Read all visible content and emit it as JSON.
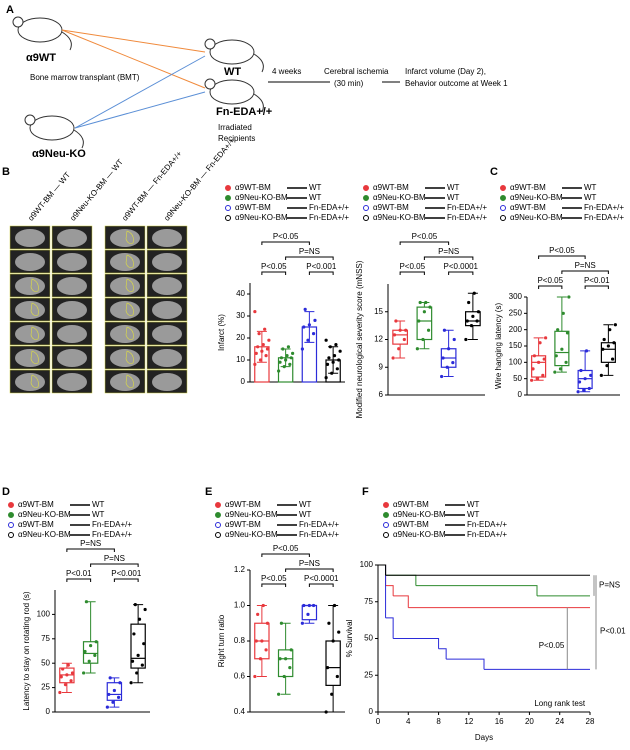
{
  "schematic": {
    "label": "A",
    "donor_wt": "α9WT",
    "bmt": "Bone marrow transplant (BMT)",
    "donor_ko": "α9Neu-KO",
    "recipient_wt": "WT",
    "recipient_fn": "Fn-EDA+/+",
    "irradiated": "Irradiated",
    "recipients": "Recipients",
    "weeks": "4 weeks",
    "ischemia": "Cerebral ischemia",
    "duration": "(30 min)",
    "outcome1": "Infarct volume (Day 2),",
    "outcome2": "Behavior outcome at Week 1"
  },
  "panels": [
    "B",
    "C",
    "D",
    "E",
    "F"
  ],
  "mri": {
    "columns": [
      "α9WT-BM — WT",
      "α9Neu-KO-BM — WT",
      "α9WT-BM — Fn-EDA+/+",
      "α9Neu-KO-BM — Fn-EDA+/+"
    ]
  },
  "chart_data": [
    {
      "type": "bar",
      "y_label": "Infarct (%)",
      "ylim": [
        0,
        45
      ],
      "yticks": [
        0,
        10,
        20,
        30,
        40
      ],
      "annotations": [
        "P<0.05",
        "P=NS",
        "P<0.05",
        "P<0.001"
      ],
      "series": [
        {
          "name": "α9WT-BM",
          "recipient": "WT",
          "color": "#e8383d",
          "marker": "filled",
          "value": 16,
          "error": 7,
          "points": [
            8,
            10,
            12,
            13,
            14,
            15,
            16,
            17,
            19,
            22,
            24,
            32
          ]
        },
        {
          "name": "α9Neu-KO-BM",
          "recipient": "WT",
          "color": "#2e8b2e",
          "marker": "filled",
          "value": 11,
          "error": 4,
          "points": [
            5,
            7,
            8,
            9,
            10,
            11,
            11,
            12,
            13,
            15,
            16
          ]
        },
        {
          "name": "α9WT-BM",
          "recipient": "Fn-EDA+/+",
          "color": "#2b2bd9",
          "marker": "open",
          "value": 25,
          "error": 7,
          "points": [
            15,
            19,
            22,
            25,
            26,
            28,
            33
          ]
        },
        {
          "name": "α9Neu-KO-BM",
          "recipient": "Fn-EDA+/+",
          "color": "#000000",
          "marker": "open",
          "value": 10,
          "error": 6,
          "points": [
            2,
            4,
            6,
            8,
            9,
            10,
            11,
            12,
            14,
            16,
            17,
            19
          ]
        }
      ]
    },
    {
      "type": "box",
      "y_label": "Modified neurological severity score (mNSS)",
      "ylim": [
        6,
        18
      ],
      "yticks": [
        6,
        9,
        12,
        15
      ],
      "annotations": [
        "P<0.05",
        "P=NS",
        "P<0.05",
        "P<0.0001"
      ],
      "series": [
        {
          "name": "α9WT-BM",
          "recipient": "WT",
          "color": "#e8383d",
          "marker": "filled",
          "box": {
            "min": 10,
            "q1": 11.5,
            "median": 12.5,
            "q3": 13,
            "max": 14
          },
          "points": [
            10,
            11,
            12,
            12.5,
            13,
            13,
            14
          ]
        },
        {
          "name": "α9Neu-KO-BM",
          "recipient": "WT",
          "color": "#2e8b2e",
          "marker": "filled",
          "box": {
            "min": 11,
            "q1": 12,
            "median": 14,
            "q3": 15.5,
            "max": 16
          },
          "points": [
            11,
            12,
            13,
            14,
            15,
            15.5,
            16,
            16
          ]
        },
        {
          "name": "α9WT-BM",
          "recipient": "Fn-EDA+/+",
          "color": "#2b2bd9",
          "marker": "open",
          "box": {
            "min": 8,
            "q1": 9,
            "median": 10,
            "q3": 11,
            "max": 13
          },
          "points": [
            8,
            9,
            9.5,
            10,
            11,
            12,
            13
          ]
        },
        {
          "name": "α9Neu-KO-BM",
          "recipient": "Fn-EDA+/+",
          "color": "#000000",
          "marker": "open",
          "box": {
            "min": 12,
            "q1": 13.5,
            "median": 14,
            "q3": 15,
            "max": 17
          },
          "points": [
            12,
            13.5,
            14,
            14,
            14.5,
            15,
            16,
            17
          ]
        }
      ]
    },
    {
      "type": "box",
      "y_label": "Wire hanging latency (s)",
      "ylim": [
        0,
        300
      ],
      "yticks": [
        0,
        50,
        100,
        150,
        200,
        250,
        300
      ],
      "annotations": [
        "P<0.05",
        "P=NS",
        "P<0.05",
        "P<0.01"
      ],
      "series": [
        {
          "name": "α9WT-BM",
          "recipient": "WT",
          "color": "#e8383d",
          "marker": "filled",
          "box": {
            "min": 45,
            "q1": 55,
            "median": 100,
            "q3": 120,
            "max": 175
          },
          "points": [
            45,
            50,
            60,
            80,
            100,
            110,
            120,
            160,
            175
          ]
        },
        {
          "name": "α9Neu-KO-BM",
          "recipient": "WT",
          "color": "#2e8b2e",
          "marker": "filled",
          "box": {
            "min": 70,
            "q1": 90,
            "median": 130,
            "q3": 195,
            "max": 300
          },
          "points": [
            70,
            80,
            100,
            120,
            140,
            190,
            200,
            250,
            300
          ]
        },
        {
          "name": "α9WT-BM",
          "recipient": "Fn-EDA+/+",
          "color": "#2b2bd9",
          "marker": "open",
          "box": {
            "min": 10,
            "q1": 20,
            "median": 50,
            "q3": 75,
            "max": 135
          },
          "points": [
            10,
            15,
            20,
            40,
            50,
            60,
            75,
            135
          ]
        },
        {
          "name": "α9Neu-KO-BM",
          "recipient": "Fn-EDA+/+",
          "color": "#000000",
          "marker": "open",
          "box": {
            "min": 60,
            "q1": 100,
            "median": 140,
            "q3": 160,
            "max": 215
          },
          "points": [
            60,
            90,
            110,
            140,
            150,
            160,
            170,
            200,
            215
          ]
        }
      ]
    },
    {
      "type": "box",
      "y_label": "Latency to stay on rotating rod (s)",
      "ylim": [
        0,
        125
      ],
      "yticks": [
        0,
        25,
        50,
        75,
        100
      ],
      "annotations": [
        "P=NS",
        "P=NS",
        "P<0.01",
        "P<0.001"
      ],
      "series": [
        {
          "name": "α9WT-BM",
          "recipient": "WT",
          "color": "#e8383d",
          "marker": "filled",
          "box": {
            "min": 20,
            "q1": 30,
            "median": 38,
            "q3": 45,
            "max": 50
          },
          "points": [
            20,
            28,
            32,
            36,
            38,
            40,
            44,
            48
          ]
        },
        {
          "name": "α9Neu-KO-BM",
          "recipient": "WT",
          "color": "#2e8b2e",
          "marker": "filled",
          "box": {
            "min": 40,
            "q1": 50,
            "median": 60,
            "q3": 72,
            "max": 113
          },
          "points": [
            40,
            52,
            58,
            62,
            68,
            72,
            113
          ]
        },
        {
          "name": "α9WT-BM",
          "recipient": "Fn-EDA+/+",
          "color": "#2b2bd9",
          "marker": "open",
          "box": {
            "min": 5,
            "q1": 12,
            "median": 18,
            "q3": 30,
            "max": 35
          },
          "points": [
            5,
            10,
            15,
            18,
            22,
            30,
            35
          ]
        },
        {
          "name": "α9Neu-KO-BM",
          "recipient": "Fn-EDA+/+",
          "color": "#000000",
          "marker": "open",
          "box": {
            "min": 30,
            "q1": 45,
            "median": 55,
            "q3": 90,
            "max": 110
          },
          "points": [
            30,
            40,
            48,
            52,
            58,
            70,
            80,
            95,
            105,
            110
          ]
        }
      ]
    },
    {
      "type": "box",
      "y_label": "Right turn ratio",
      "ylim": [
        0.4,
        1.2
      ],
      "yticks": [
        0.4,
        0.6,
        0.8,
        {
          "value": 1,
          "label": "1.0"
        },
        1.2
      ],
      "annotations": [
        "P<0.05",
        "P=NS",
        "P<0.05",
        "P<0.0001"
      ],
      "series": [
        {
          "name": "α9WT-BM",
          "recipient": "WT",
          "color": "#e8383d",
          "marker": "filled",
          "box": {
            "min": 0.6,
            "q1": 0.7,
            "median": 0.8,
            "q3": 0.9,
            "max": 1
          },
          "points": [
            0.6,
            0.7,
            0.75,
            0.8,
            0.8,
            0.9,
            0.95,
            1
          ]
        },
        {
          "name": "α9Neu-KO-BM",
          "recipient": "WT",
          "color": "#2e8b2e",
          "marker": "filled",
          "box": {
            "min": 0.5,
            "q1": 0.6,
            "median": 0.7,
            "q3": 0.75,
            "max": 0.9
          },
          "points": [
            0.5,
            0.6,
            0.65,
            0.7,
            0.7,
            0.75,
            0.9
          ]
        },
        {
          "name": "α9WT-BM",
          "recipient": "Fn-EDA+/+",
          "color": "#2b2bd9",
          "marker": "open",
          "box": {
            "min": 0.9,
            "q1": 0.92,
            "median": 1,
            "q3": 1,
            "max": 1
          },
          "points": [
            0.9,
            0.95,
            1,
            1,
            1
          ]
        },
        {
          "name": "α9Neu-KO-BM",
          "recipient": "Fn-EDA+/+",
          "color": "#000000",
          "marker": "open",
          "box": {
            "min": 0.4,
            "q1": 0.55,
            "median": 0.65,
            "q3": 0.8,
            "max": 1
          },
          "points": [
            0.4,
            0.5,
            0.6,
            0.65,
            0.8,
            0.85,
            0.9,
            1
          ]
        }
      ]
    },
    {
      "type": "survival",
      "x_label": "Days",
      "y_label": "% Survival",
      "xlim": [
        0,
        28
      ],
      "xticks": [
        0,
        4,
        8,
        12,
        16,
        20,
        24,
        28
      ],
      "ylim": [
        0,
        100
      ],
      "yticks": [
        0,
        25,
        50,
        75,
        100
      ],
      "annotations": [
        "P=NS",
        "P<0.01",
        "P<0.05",
        "Long rank test"
      ],
      "series": [
        {
          "name": "α9WT-BM",
          "recipient": "WT",
          "color": "#e8383d",
          "marker": "filled",
          "x": [
            0,
            1,
            2,
            4,
            28
          ],
          "values": [
            100,
            86,
            79,
            71,
            71
          ]
        },
        {
          "name": "α9Neu-KO-BM",
          "recipient": "WT",
          "color": "#2e8b2e",
          "marker": "filled",
          "x": [
            0,
            1,
            5,
            21,
            28
          ],
          "values": [
            100,
            93,
            86,
            79,
            79
          ]
        },
        {
          "name": "α9WT-BM",
          "recipient": "Fn-EDA+/+",
          "color": "#2b2bd9",
          "marker": "open",
          "x": [
            0,
            1,
            2,
            8,
            9,
            14,
            28
          ],
          "values": [
            100,
            64,
            50,
            43,
            36,
            29,
            29
          ]
        },
        {
          "name": "α9Neu-KO-BM",
          "recipient": "Fn-EDA+/+",
          "color": "#000000",
          "marker": "open",
          "x": [
            0,
            1,
            28
          ],
          "values": [
            100,
            93,
            93
          ]
        }
      ]
    }
  ]
}
